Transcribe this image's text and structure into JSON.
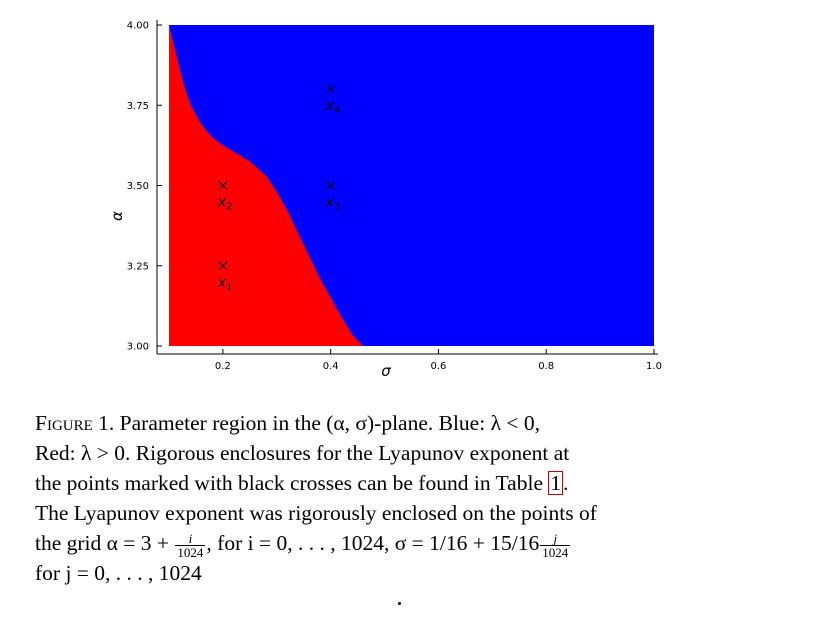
{
  "chart_data": {
    "type": "heatmap",
    "title": "",
    "xlabel": "σ",
    "ylabel": "α",
    "xlim": [
      0.1,
      1.0
    ],
    "ylim": [
      3.0,
      4.0
    ],
    "x_ticks": [
      0.2,
      0.4,
      0.6,
      0.8,
      1.0
    ],
    "x_tick_labels": [
      "0.2",
      "0.4",
      "0.6",
      "0.8",
      "1.0"
    ],
    "y_ticks": [
      3.0,
      3.25,
      3.5,
      3.75,
      4.0
    ],
    "y_tick_labels": [
      "3.00",
      "3.25",
      "3.50",
      "3.75",
      "4.00"
    ],
    "regions": [
      {
        "name": "Red: λ > 0",
        "color": "#ff0000"
      },
      {
        "name": "Blue: λ < 0",
        "color": "#0000ff"
      }
    ],
    "boundary_curve": {
      "sigma": [
        0.1,
        0.11,
        0.12,
        0.13,
        0.14,
        0.16,
        0.18,
        0.2,
        0.22,
        0.25,
        0.28,
        0.3,
        0.32,
        0.34,
        0.36,
        0.38,
        0.4,
        0.42,
        0.44,
        0.46
      ],
      "alpha": [
        4.0,
        3.93,
        3.86,
        3.8,
        3.75,
        3.69,
        3.65,
        3.625,
        3.605,
        3.575,
        3.53,
        3.48,
        3.42,
        3.35,
        3.28,
        3.21,
        3.15,
        3.09,
        3.035,
        3.0
      ]
    },
    "points": [
      {
        "label": "x_1",
        "sigma": 0.2,
        "alpha": 3.25
      },
      {
        "label": "x_2",
        "sigma": 0.2,
        "alpha": 3.5
      },
      {
        "label": "x_3",
        "sigma": 0.4,
        "alpha": 3.5
      },
      {
        "label": "x_4",
        "sigma": 0.4,
        "alpha": 3.8
      }
    ],
    "grid": false
  },
  "caption": {
    "label": "Figure 1.",
    "line1": "Parameter region in the (α, σ)-plane.  Blue: λ < 0,",
    "line2": "Red: λ > 0.  Rigorous enclosures for the Lyapunov exponent at",
    "line3_pre": "the points marked with black crosses can be found in Table",
    "table_ref": "1",
    "line3_post": ".",
    "line4": "The Lyapunov exponent was rigorously enclosed on the points of",
    "line5_a": "the grid α = 3 + ",
    "frac1_num": "i",
    "frac1_den": "1024",
    "line5_b": ", for i = 0, . . . , 1024, σ = 1/16 + 15/16",
    "frac2_num": "j",
    "frac2_den": "1024",
    "line6": "for j = 0, . . . , 1024"
  }
}
